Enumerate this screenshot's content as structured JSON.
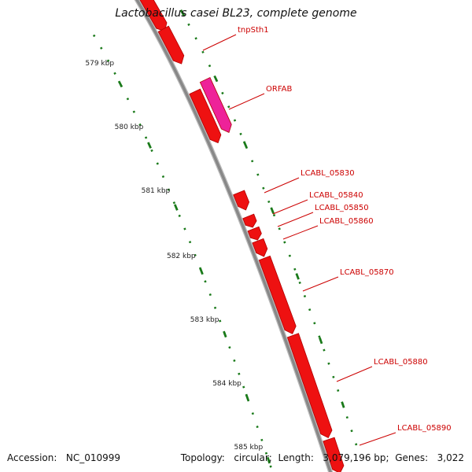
{
  "title": "Lactobacillus casei BL23, complete genome",
  "footer": {
    "accession_label": "Accession:",
    "accession": "NC_010999",
    "topology_label": "Topology:",
    "topology": "circular",
    "length_label": "Length:",
    "length": "3,079,196 bp",
    "genes_label": "Genes:",
    "genes": "3,022"
  },
  "colors": {
    "backbone": "#888888",
    "forward_feature": "#ee1111",
    "orf_feature": "#ee2299",
    "tick": "#1a7a1a",
    "label": "#cc0000"
  },
  "axis": {
    "unit": "kbp",
    "ticks": [
      "579 kbp",
      "580 kbp",
      "581 kbp",
      "582 kbp",
      "583 kbp",
      "584 kbp",
      "585 kbp"
    ]
  },
  "features": [
    {
      "label": "tnpSth1",
      "type": "gene",
      "strand": "+"
    },
    {
      "label": "ORFAB",
      "type": "orf",
      "strand": "+"
    },
    {
      "label": "LCABL_05830",
      "type": "gene",
      "strand": "+"
    },
    {
      "label": "LCABL_05840",
      "type": "gene",
      "strand": "+"
    },
    {
      "label": "LCABL_05850",
      "type": "gene",
      "strand": "+"
    },
    {
      "label": "LCABL_05860",
      "type": "gene",
      "strand": "+"
    },
    {
      "label": "LCABL_05870",
      "type": "gene",
      "strand": "+"
    },
    {
      "label": "LCABL_05880",
      "type": "gene",
      "strand": "+"
    },
    {
      "label": "LCABL_05890",
      "type": "gene",
      "strand": "+"
    }
  ]
}
